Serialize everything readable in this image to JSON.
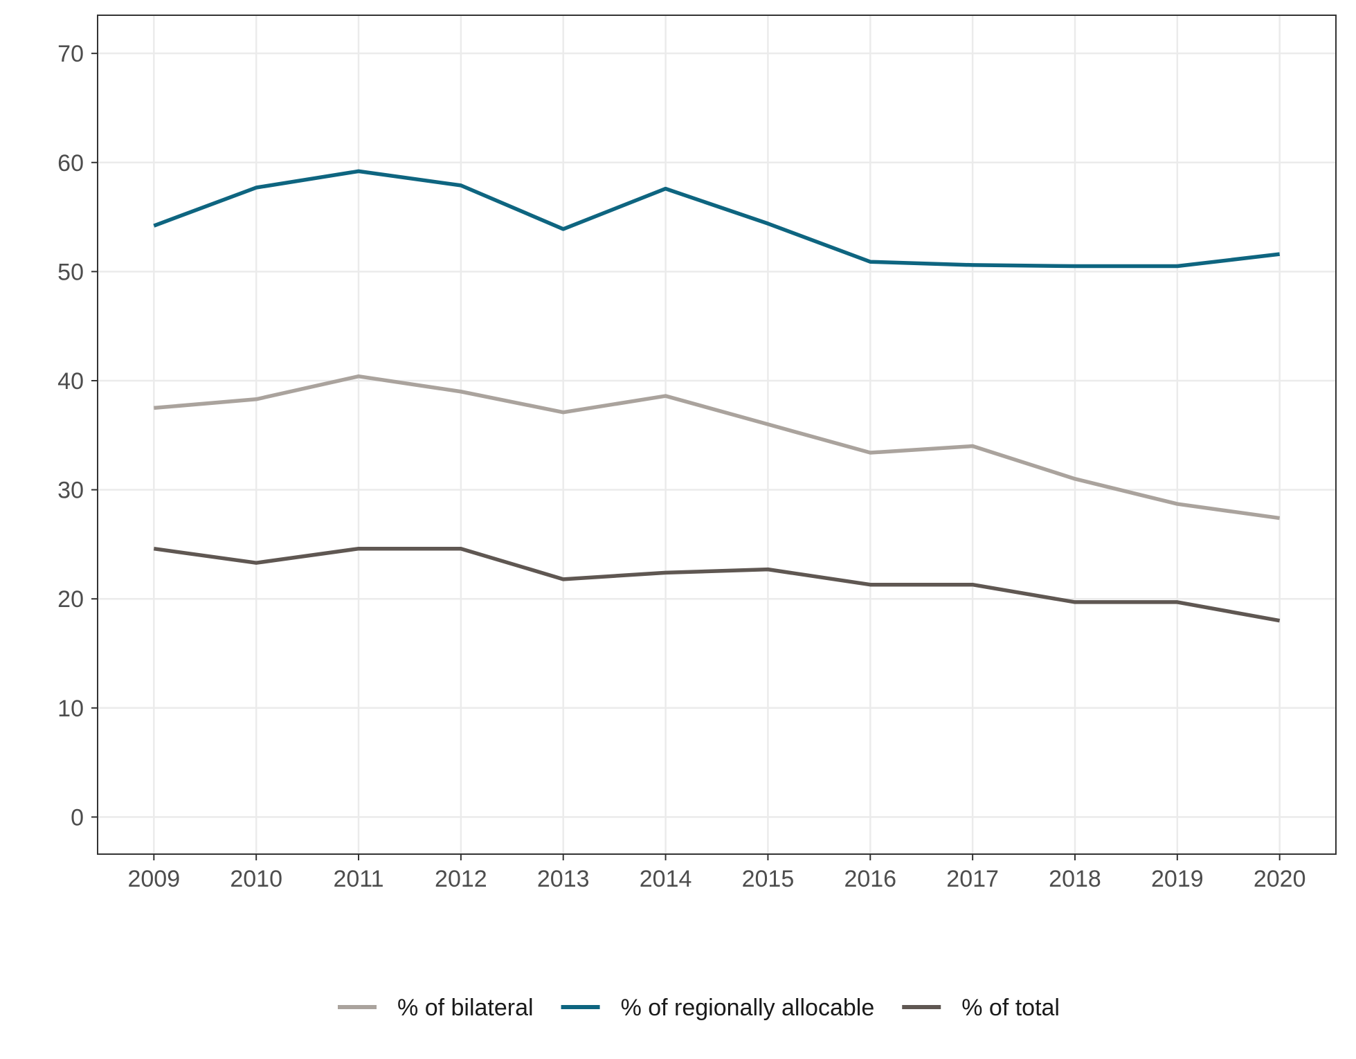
{
  "chart_data": {
    "type": "line",
    "title": "",
    "xlabel": "",
    "ylabel": "",
    "x": [
      2009,
      2010,
      2011,
      2012,
      2013,
      2014,
      2015,
      2016,
      2017,
      2018,
      2019,
      2020
    ],
    "xlim": [
      2008.45,
      2020.55
    ],
    "ylim": [
      -3.4,
      73.5
    ],
    "yticks": [
      0,
      10,
      20,
      30,
      40,
      50,
      60,
      70
    ],
    "grid": true,
    "legend_position": "bottom",
    "series": [
      {
        "name": "% of bilateral",
        "color": "#aaa39d",
        "values": [
          37.5,
          38.3,
          40.4,
          39.0,
          37.1,
          38.6,
          36.0,
          33.4,
          34.0,
          31.0,
          28.7,
          27.4
        ]
      },
      {
        "name": "% of regionally allocable",
        "color": "#0e6580",
        "values": [
          54.2,
          57.7,
          59.2,
          57.9,
          53.9,
          57.6,
          54.4,
          50.9,
          50.6,
          50.5,
          50.5,
          51.6
        ]
      },
      {
        "name": "% of total",
        "color": "#5f5752",
        "values": [
          24.6,
          23.3,
          24.6,
          24.6,
          21.8,
          22.4,
          22.7,
          21.3,
          21.3,
          19.7,
          19.7,
          18.0
        ]
      }
    ]
  }
}
